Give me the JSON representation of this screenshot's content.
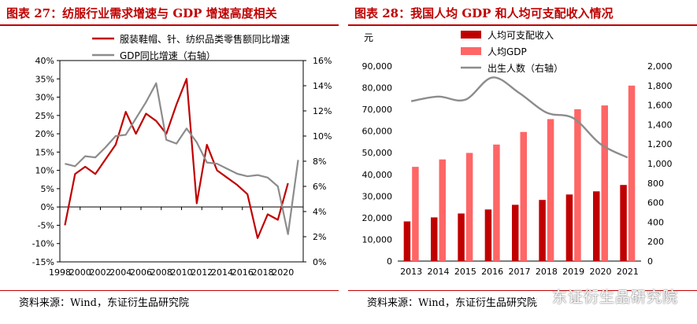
{
  "left": {
    "title": "图表 27：纺服行业需求增速与 GDP 增速高度相关",
    "source": "资料来源：Wind，东证衍生品研究院"
  },
  "right": {
    "title": "图表 28：我国人均 GDP 和人均可支配收入情况",
    "source": "资料来源：Wind，东证衍生品研究院"
  },
  "watermark": "东证衍生品研究院",
  "colors": {
    "accent_red": "#c00000",
    "line_red": "#c00000",
    "line_gray": "#8c8c8c",
    "bar_dark": "#c00000",
    "bar_light": "#ff6666"
  },
  "chart_data": [
    {
      "type": "line",
      "x": [
        1998,
        1999,
        2000,
        2001,
        2002,
        2003,
        2004,
        2005,
        2006,
        2007,
        2008,
        2009,
        2010,
        2011,
        2012,
        2013,
        2014,
        2015,
        2016,
        2017,
        2018,
        2019,
        2020,
        2021
      ],
      "x_tick_labels": [
        "1998",
        "2000",
        "2002",
        "2004",
        "2006",
        "2008",
        "2010",
        "2012",
        "2014",
        "2016",
        "2018",
        "2020"
      ],
      "series": [
        {
          "name": "服装鞋帽、针、纺织品类零售额同比增速",
          "axis": "left",
          "values": [
            -5,
            9,
            11,
            9,
            13,
            17,
            26,
            20,
            25.5,
            23.5,
            20,
            28,
            35,
            1,
            17,
            10,
            8,
            6,
            3.5,
            -8.5,
            -2,
            -3.5,
            6.5,
            null
          ]
        },
        {
          "name": "GDP同比增速（右轴）",
          "axis": "right",
          "values": [
            7.8,
            7.6,
            8.4,
            8.3,
            9.1,
            10.0,
            10.1,
            11.4,
            12.7,
            14.2,
            9.7,
            9.4,
            10.6,
            9.5,
            7.9,
            7.8,
            7.4,
            7.0,
            6.8,
            6.9,
            6.7,
            6.0,
            2.2,
            8.1
          ]
        }
      ],
      "y_left": {
        "lim": [
          -15,
          40
        ],
        "ticks": [
          "-15%",
          "-10%",
          "-5%",
          "0%",
          "5%",
          "10%",
          "15%",
          "20%",
          "25%",
          "30%",
          "35%",
          "40%"
        ]
      },
      "y_right": {
        "lim": [
          0,
          16
        ],
        "ticks": [
          "0%",
          "2%",
          "4%",
          "6%",
          "8%",
          "10%",
          "12%",
          "14%",
          "16%"
        ]
      },
      "legend": "top-left"
    },
    {
      "type": "bar",
      "categories": [
        "2013",
        "2014",
        "2015",
        "2016",
        "2017",
        "2018",
        "2019",
        "2020",
        "2021"
      ],
      "series": [
        {
          "name": "人均可支配收入",
          "kind": "bar",
          "axis": "left",
          "values": [
            18311,
            20167,
            21966,
            23821,
            25974,
            28228,
            30733,
            32189,
            35128
          ]
        },
        {
          "name": "人均GDP",
          "kind": "bar",
          "axis": "left",
          "values": [
            43497,
            46912,
            49922,
            53783,
            59592,
            65534,
            70078,
            71828,
            80976
          ]
        },
        {
          "name": "出生人数（右轴）",
          "kind": "line",
          "axis": "right",
          "values": [
            1640,
            1687,
            1655,
            1883,
            1723,
            1523,
            1465,
            1200,
            1062
          ]
        }
      ],
      "ylabel": "元",
      "y_left": {
        "lim": [
          0,
          90000
        ],
        "ticks": [
          "0",
          "10,000",
          "20,000",
          "30,000",
          "40,000",
          "50,000",
          "60,000",
          "70,000",
          "80,000",
          "90,000"
        ]
      },
      "y_right": {
        "lim": [
          0,
          2000
        ],
        "ticks": [
          "0",
          "200",
          "400",
          "600",
          "800",
          "1,000",
          "1,200",
          "1,400",
          "1,600",
          "1,800",
          "2,000"
        ]
      },
      "legend": "top-center"
    }
  ]
}
